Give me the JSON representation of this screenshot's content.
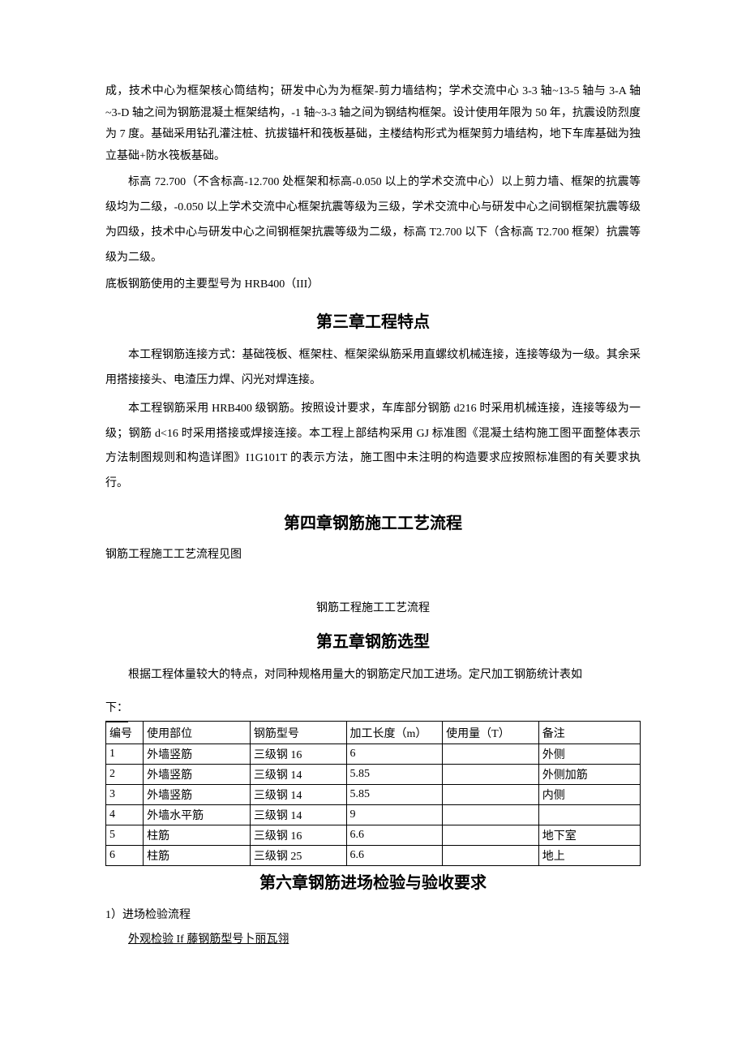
{
  "para1": "成，技术中心为框架核心筒结构；研发中心为为框架-剪力墙结构；学术交流中心 3-3 轴~13-5 轴与 3-A 轴~3-D 轴之间为钢筋混凝土框架结构，-1 轴~3-3 轴之间为钢结构框架。设计使用年限为 50 年，抗震设防烈度为 7 度。基础采用钻孔灌注桩、抗拔锚杆和筏板基础，主楼结构形式为框架剪力墙结构，地下车库基础为独立基础+防水筏板基础。",
  "para2": "标高 72.700（不含标高-12.700 处框架和标高-0.050 以上的学术交流中心）以上剪力墙、框架的抗震等级均为二级，-0.050 以上学术交流中心框架抗震等级为三级，学术交流中心与研发中心之间钢框架抗震等级为四级，技术中心与研发中心之间钢框架抗震等级为二级，标高 T2.700 以下（含标高 T2.700 框架）抗震等级为二级。",
  "para3": "底板钢筋使用的主要型号为 HRB400（III）",
  "chapter3_title": "第三章工程特点",
  "para4": "本工程钢筋连接方式：基础筏板、框架柱、框架梁纵筋采用直螺纹机械连接，连接等级为一级。其余采用搭接接头、电渣压力焊、闪光对焊连接。",
  "para5": "本工程钢筋采用 HRB400 级钢筋。按照设计要求，车库部分钢筋 d216 时采用机械连接，连接等级为一级；钢筋 d<16 时采用搭接或焊接连接。本工程上部结构采用 GJ 标准图《混凝土结构施工图平面整体表示方法制图规则和构造详图》I1G101T 的表示方法，施工图中未注明的构造要求应按照标准图的有关要求执行。",
  "chapter4_title": "第四章钢筋施工工艺流程",
  "para6": "钢筋工程施工工艺流程见图",
  "flow_sub": "钢筋工程施工工艺流程",
  "chapter5_title": "第五章钢筋选型",
  "para7": "根据工程体量较大的特点，对同种规格用量大的钢筋定尺加工进场。定尺加工钢筋统计表如",
  "below_label": "下：",
  "table": {
    "headers": {
      "id": "编号",
      "part": "使用部位",
      "type": "钢筋型号",
      "length": "加工长度（m）",
      "usage": "使用量（T）",
      "note": "备注"
    },
    "rows": [
      {
        "id": "1",
        "part": "外墙竖筋",
        "type": "三级钢 16",
        "length": "6",
        "usage": "",
        "note": "外侧"
      },
      {
        "id": "2",
        "part": "外墙竖筋",
        "type": "三级钢 14",
        "length": "5.85",
        "usage": "",
        "note": "外侧加筋"
      },
      {
        "id": "3",
        "part": "外墙竖筋",
        "type": "三级钢 14",
        "length": "5.85",
        "usage": "",
        "note": "内侧"
      },
      {
        "id": "4",
        "part": "外墙水平筋",
        "type": "三级钢 14",
        "length": "9",
        "usage": "",
        "note": ""
      },
      {
        "id": "5",
        "part": "柱筋",
        "type": "三级钢 16",
        "length": "6.6",
        "usage": "",
        "note": "地下室"
      },
      {
        "id": "6",
        "part": "柱筋",
        "type": "三级钢 25",
        "length": "6.6",
        "usage": "",
        "note": "地上"
      }
    ]
  },
  "chapter6_title": "第六章钢筋进场检验与验收要求",
  "section1": "1）进场检验流程",
  "underline_text": "外观检验 If 藤钢筋型号卜丽瓦翎"
}
